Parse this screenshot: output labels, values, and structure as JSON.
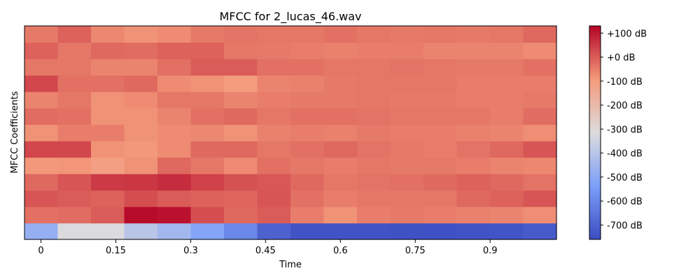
{
  "chart_data": {
    "type": "heatmap",
    "title": "MFCC for 2_lucas_46.wav",
    "xlabel": "Time",
    "ylabel": "MFCC Coefficients",
    "x_ticks": [
      {
        "value": 0,
        "label": "0"
      },
      {
        "value": 0.15,
        "label": "0.15"
      },
      {
        "value": 0.3,
        "label": "0.3"
      },
      {
        "value": 0.45,
        "label": "0.45"
      },
      {
        "value": 0.6,
        "label": "0.6"
      },
      {
        "value": 0.75,
        "label": "0.75"
      },
      {
        "value": 0.9,
        "label": "0.9"
      }
    ],
    "xlim": [
      -0.033,
      1.033
    ],
    "n_coefficients": 13,
    "n_frames": 16,
    "frame_step": 0.0667,
    "colorbar": {
      "colormap": "coolwarm",
      "vmin": -760,
      "vmax": 130,
      "ticks": [
        {
          "value": 100,
          "label": "+100 dB"
        },
        {
          "value": 0,
          "label": "+0 dB"
        },
        {
          "value": -100,
          "label": "-100 dB"
        },
        {
          "value": -200,
          "label": "-200 dB"
        },
        {
          "value": -300,
          "label": "-300 dB"
        },
        {
          "value": -400,
          "label": "-400 dB"
        },
        {
          "value": -500,
          "label": "-500 dB"
        },
        {
          "value": -600,
          "label": "-600 dB"
        },
        {
          "value": -700,
          "label": "-700 dB"
        }
      ]
    },
    "rows_bottom_to_top": [
      [
        -480,
        -320,
        -320,
        -400,
        -450,
        -520,
        -600,
        -700,
        -740,
        -740,
        -740,
        -745,
        -750,
        -740,
        -735,
        -720
      ],
      [
        -30,
        -25,
        0,
        120,
        110,
        20,
        -20,
        0,
        -50,
        -80,
        -50,
        -45,
        -50,
        -55,
        -60,
        -75
      ],
      [
        10,
        0,
        -10,
        20,
        0,
        -10,
        -15,
        10,
        -30,
        -50,
        -40,
        -40,
        -40,
        -20,
        -10,
        10
      ],
      [
        -20,
        10,
        50,
        55,
        70,
        40,
        15,
        5,
        -20,
        -40,
        -35,
        -30,
        -20,
        -10,
        -20,
        -35
      ],
      [
        -90,
        -85,
        -110,
        -80,
        -20,
        -40,
        -70,
        -30,
        -40,
        -50,
        -40,
        -45,
        -45,
        -50,
        -60,
        -65
      ],
      [
        30,
        30,
        -80,
        -90,
        -70,
        -20,
        -20,
        -40,
        -30,
        -20,
        -35,
        -45,
        -50,
        -35,
        -20,
        10
      ],
      [
        -80,
        -50,
        -50,
        -80,
        -70,
        -65,
        -80,
        -55,
        -50,
        -55,
        -45,
        -50,
        -50,
        -55,
        -60,
        -75
      ],
      [
        -25,
        -30,
        -80,
        -80,
        -60,
        -30,
        -20,
        -40,
        -30,
        -30,
        -35,
        -40,
        -40,
        -40,
        -50,
        -25
      ],
      [
        -60,
        -40,
        -80,
        -70,
        -40,
        -40,
        -60,
        -50,
        -45,
        -45,
        -40,
        -45,
        -45,
        -50,
        -50,
        -45
      ],
      [
        30,
        -30,
        -30,
        -20,
        -70,
        -80,
        -100,
        -60,
        -55,
        -45,
        -40,
        -40,
        -40,
        -50,
        -50,
        -50
      ],
      [
        -40,
        -40,
        -60,
        -60,
        -30,
        0,
        0,
        -30,
        -30,
        -40,
        -40,
        -35,
        -40,
        -45,
        -45,
        -30
      ],
      [
        -10,
        -40,
        -20,
        -25,
        -10,
        -10,
        -40,
        -45,
        -50,
        -55,
        -50,
        -50,
        -60,
        -60,
        -60,
        -70
      ],
      [
        -45,
        -10,
        -65,
        -80,
        -70,
        -45,
        -35,
        -40,
        -40,
        -30,
        -40,
        -45,
        -40,
        -45,
        -40,
        -20
      ]
    ]
  }
}
